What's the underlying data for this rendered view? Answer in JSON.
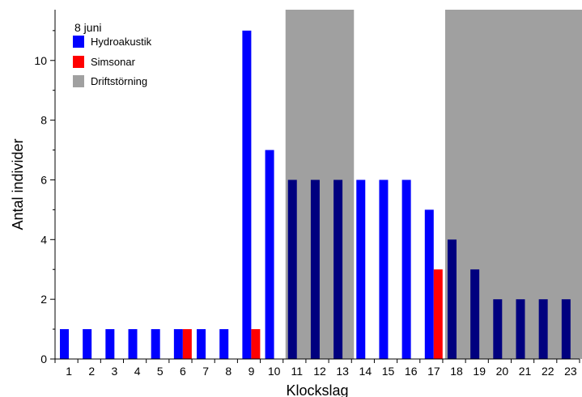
{
  "chart_data": {
    "type": "bar",
    "title": "8 juni",
    "xlabel": "Klockslag",
    "ylabel": "Antal individer",
    "ylim": [
      0,
      11.7
    ],
    "yticks": [
      0,
      2,
      4,
      6,
      8,
      10
    ],
    "categories": [
      "1",
      "2",
      "3",
      "4",
      "5",
      "6",
      "7",
      "8",
      "9",
      "10",
      "11",
      "12",
      "13",
      "14",
      "15",
      "16",
      "17",
      "18",
      "19",
      "20",
      "21",
      "22",
      "23"
    ],
    "series": [
      {
        "name": "Hydroakustik",
        "color": "#0000ff",
        "values": [
          1,
          1,
          1,
          1,
          1,
          1,
          1,
          1,
          11,
          7,
          6,
          6,
          6,
          6,
          6,
          6,
          5,
          4,
          3,
          2,
          2,
          2,
          2
        ]
      },
      {
        "name": "Simsonar",
        "color": "#ff0000",
        "values": [
          0,
          0,
          0,
          0,
          0,
          1,
          0,
          0,
          1,
          0,
          0,
          0,
          0,
          0,
          0,
          0,
          3,
          0,
          0,
          0,
          0,
          0,
          0
        ]
      }
    ],
    "disturbance": {
      "name": "Driftstörning",
      "color": "#a0a0a0",
      "ranges": [
        [
          11,
          13
        ],
        [
          18,
          23
        ]
      ]
    },
    "overlap_color": "#00007f",
    "grid": false,
    "legend_position": "top-left"
  }
}
